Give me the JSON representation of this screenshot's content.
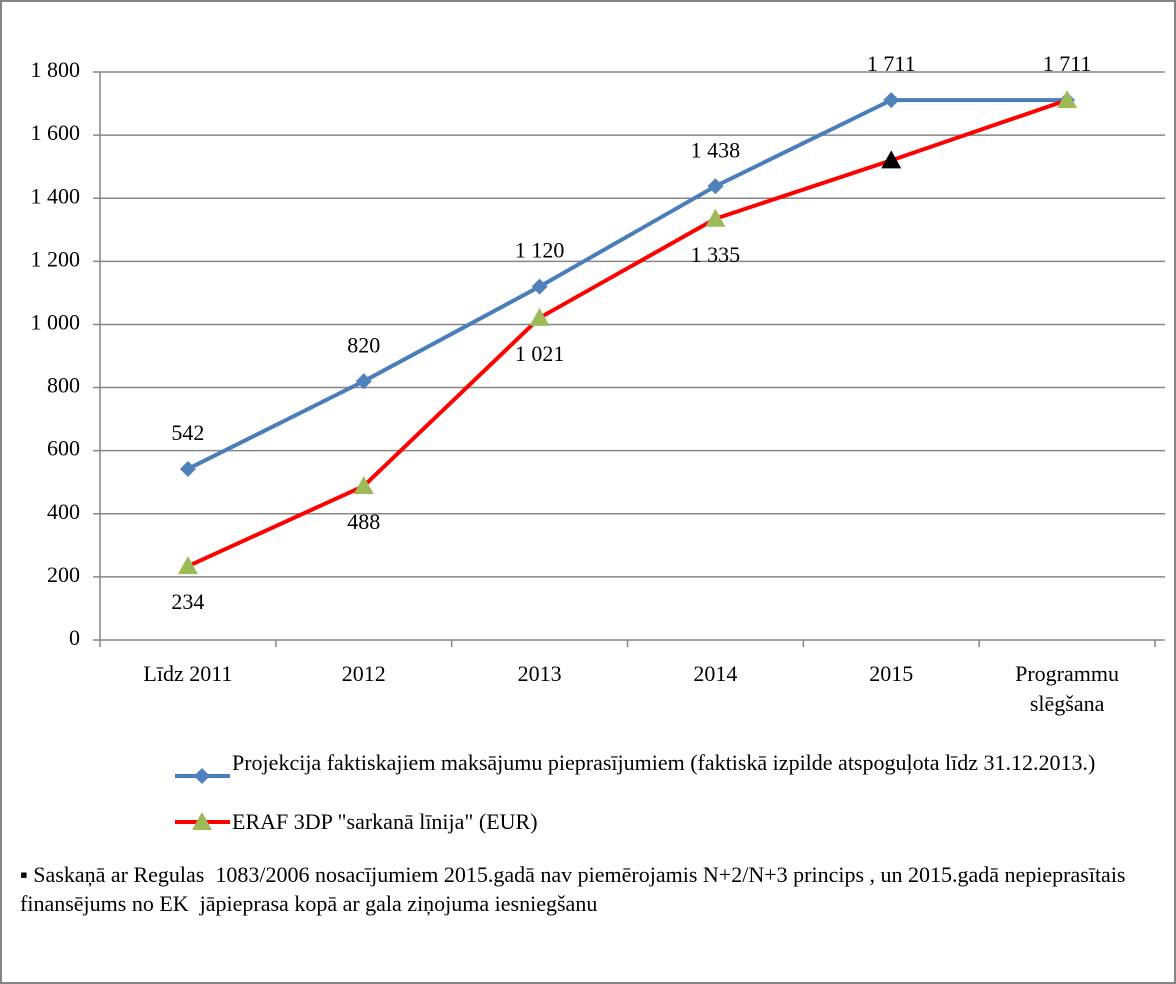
{
  "chart_data": {
    "type": "line",
    "categories": [
      "Līdz 2011",
      "2012",
      "2013",
      "2014",
      "2015",
      "Programmu slēgšana"
    ],
    "series": [
      {
        "name": "Projekcija faktiskajiem maksājumu pieprasījumiem (faktiskā izpilde atspoguļota līdz 31.12.2013.)",
        "color": "#4a7ebb",
        "marker": "diamond",
        "marker_color": "#4f81bd",
        "values": [
          542,
          820,
          1120,
          1438,
          1711,
          1711
        ],
        "value_labels": [
          "542",
          "820",
          "1 120",
          "1 438",
          "1 711",
          "1 711"
        ]
      },
      {
        "name": "ERAF 3DP \"sarkanā līnija\" (EUR)",
        "color": "#ff0000",
        "marker": "triangle",
        "marker_colors": [
          "#9bbb59",
          "#9bbb59",
          "#9bbb59",
          "#9bbb59",
          "#000000",
          "#9bbb59"
        ],
        "values": [
          234,
          488,
          1021,
          1335,
          1520,
          1711
        ],
        "value_labels": [
          "234",
          "488",
          "1 021",
          "1 335",
          null,
          null
        ]
      }
    ],
    "ylim": [
      0,
      1800
    ],
    "yticks": [
      0,
      200,
      400,
      600,
      800,
      {
        "value": 1000,
        "label": "1 000"
      },
      {
        "value": 1200,
        "label": "1 200"
      },
      {
        "value": 1400,
        "label": "1 400"
      },
      {
        "value": 1600,
        "label": "1 600"
      },
      {
        "value": 1800,
        "label": "1 800"
      }
    ],
    "grid": true,
    "legend": "bottom",
    "note": "▪ Saskaņā ar Regulas  1083/2006 nosacījumiem 2015.gadā nav piemērojamis N+2/N+3 princips , un 2015.gadā nepieprasītais finansējums no EK  jāpieprasa kopā ar gala ziņojuma iesniegšanu"
  }
}
